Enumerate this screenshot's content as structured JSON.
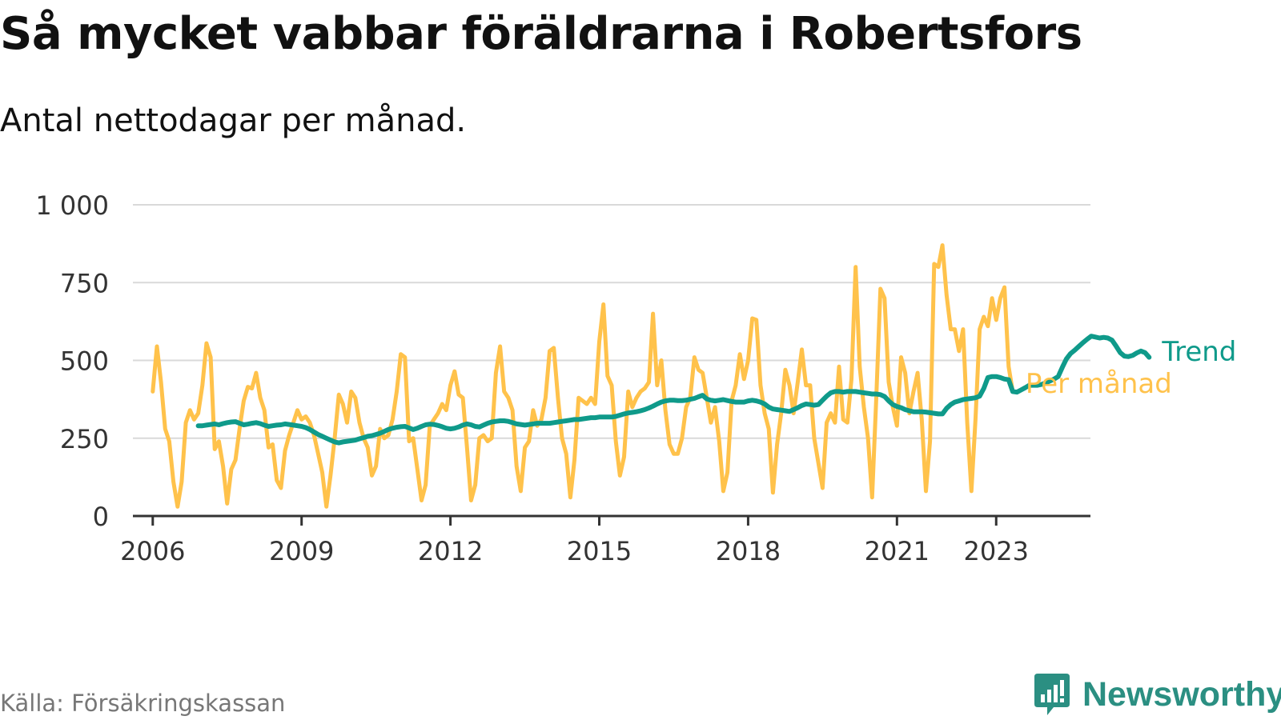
{
  "header": {
    "title": "Så mycket vabbar föräldrarna i Robertsfors",
    "subtitle": "Antal nettodagar per månad."
  },
  "footer": {
    "source": "Källa: Försäkringskassan",
    "brand": "Newsworthy",
    "brand_icon": "newsworthy-logo-icon",
    "brand_color": "#2b8f82"
  },
  "chart_data": {
    "type": "line",
    "title": "Så mycket vabbar föräldrarna i Robertsfors",
    "subtitle": "Antal nettodagar per månad.",
    "xlabel": "",
    "ylabel": "",
    "xlim": [
      2005.6,
      2024.9
    ],
    "ylim": [
      0,
      1000
    ],
    "yticks": [
      {
        "value": 0,
        "label": "0"
      },
      {
        "value": 250,
        "label": "250"
      },
      {
        "value": 500,
        "label": "500"
      },
      {
        "value": 750,
        "label": "750"
      },
      {
        "value": 1000,
        "label": "1 000"
      }
    ],
    "xticks": [
      {
        "value": 2006,
        "label": "2006"
      },
      {
        "value": 2009,
        "label": "2009"
      },
      {
        "value": 2012,
        "label": "2012"
      },
      {
        "value": 2015,
        "label": "2015"
      },
      {
        "value": 2018,
        "label": "2018"
      },
      {
        "value": 2021,
        "label": "2021"
      },
      {
        "value": 2023,
        "label": "2023"
      }
    ],
    "grid": true,
    "legend": "inline-right",
    "series": [
      {
        "name": "Per månad",
        "color": "#ffc24b",
        "start": "2006-01",
        "values": [
          400,
          545,
          430,
          280,
          240,
          110,
          30,
          110,
          300,
          340,
          310,
          330,
          420,
          555,
          510,
          215,
          240,
          160,
          40,
          150,
          180,
          280,
          370,
          415,
          410,
          460,
          380,
          340,
          220,
          230,
          115,
          90,
          210,
          260,
          300,
          340,
          310,
          320,
          300,
          260,
          200,
          140,
          30,
          130,
          250,
          390,
          360,
          300,
          400,
          380,
          300,
          250,
          220,
          130,
          160,
          280,
          250,
          260,
          310,
          400,
          520,
          510,
          240,
          250,
          150,
          50,
          100,
          290,
          310,
          330,
          360,
          340,
          420,
          465,
          390,
          380,
          220,
          50,
          100,
          250,
          260,
          240,
          250,
          460,
          545,
          400,
          380,
          340,
          160,
          80,
          220,
          240,
          340,
          290,
          310,
          380,
          530,
          540,
          380,
          250,
          200,
          60,
          180,
          380,
          370,
          360,
          380,
          360,
          560,
          680,
          450,
          420,
          240,
          130,
          190,
          400,
          350,
          380,
          400,
          410,
          430,
          650,
          420,
          500,
          340,
          230,
          200,
          200,
          250,
          350,
          380,
          510,
          470,
          460,
          380,
          300,
          350,
          240,
          80,
          140,
          370,
          420,
          520,
          440,
          500,
          635,
          630,
          420,
          330,
          280,
          75,
          230,
          330,
          470,
          420,
          330,
          430,
          535,
          420,
          420,
          250,
          170,
          90,
          300,
          330,
          300,
          480,
          310,
          300,
          440,
          800,
          480,
          350,
          250,
          60,
          380,
          730,
          700,
          430,
          350,
          290,
          510,
          460,
          330,
          400,
          460,
          310,
          80,
          240,
          810,
          800,
          870,
          710,
          600,
          600,
          530,
          600,
          300,
          80,
          310,
          600,
          640,
          610,
          700,
          630,
          700,
          735,
          480,
          400
        ]
      },
      {
        "name": "Trend",
        "color": "#0f9a8a",
        "start": "2006-12",
        "values": [
          290,
          290,
          292,
          294,
          296,
          293,
          297,
          300,
          302,
          303,
          298,
          293,
          295,
          298,
          300,
          297,
          292,
          288,
          290,
          292,
          293,
          296,
          294,
          292,
          290,
          288,
          284,
          278,
          270,
          262,
          256,
          250,
          244,
          238,
          235,
          238,
          240,
          242,
          244,
          248,
          252,
          256,
          258,
          262,
          266,
          272,
          278,
          282,
          285,
          287,
          288,
          283,
          278,
          282,
          288,
          293,
          295,
          294,
          291,
          287,
          282,
          280,
          282,
          286,
          292,
          296,
          293,
          288,
          286,
          292,
          298,
          302,
          304,
          306,
          306,
          304,
          300,
          296,
          294,
          292,
          294,
          296,
          298,
          298,
          298,
          298,
          300,
          302,
          304,
          306,
          308,
          310,
          310,
          312,
          314,
          316,
          316,
          318,
          318,
          318,
          318,
          320,
          324,
          328,
          331,
          333,
          335,
          338,
          342,
          347,
          353,
          360,
          366,
          370,
          372,
          372,
          371,
          371,
          372,
          375,
          378,
          383,
          388,
          376,
          372,
          370,
          372,
          374,
          371,
          368,
          366,
          366,
          366,
          370,
          372,
          370,
          366,
          360,
          350,
          344,
          342,
          340,
          338,
          336,
          342,
          348,
          355,
          360,
          358,
          356,
          358,
          372,
          385,
          396,
          400,
          400,
          398,
          400,
          400,
          400,
          398,
          396,
          394,
          392,
          392,
          390,
          384,
          370,
          358,
          352,
          348,
          342,
          338,
          335,
          335,
          335,
          334,
          332,
          330,
          328,
          328,
          346,
          358,
          366,
          370,
          374,
          376,
          378,
          380,
          385,
          410,
          445,
          448,
          448,
          445,
          440,
          438,
          400,
          398,
          405,
          412,
          420,
          420,
          420,
          423,
          428,
          434,
          440,
          448,
          478,
          505,
          522,
          533,
          545,
          557,
          568,
          578,
          575,
          572,
          574,
          572,
          565,
          546,
          525,
          514,
          512,
          516,
          524,
          530,
          525,
          510
        ]
      }
    ]
  }
}
